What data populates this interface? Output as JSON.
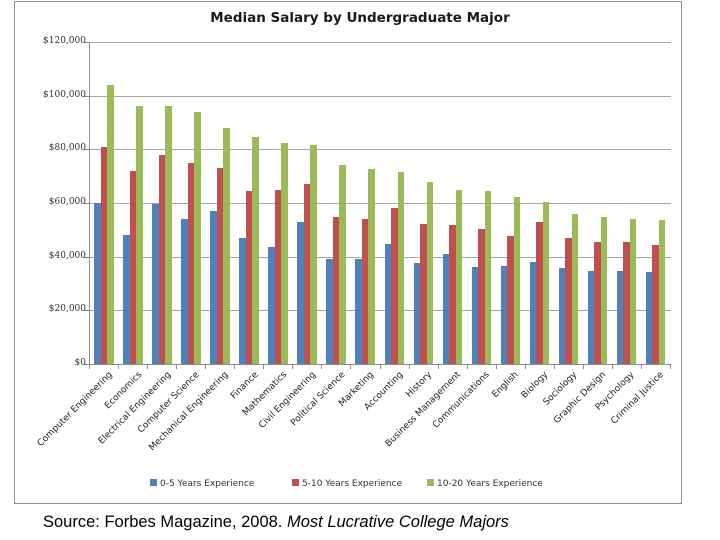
{
  "chart_data": {
    "type": "bar",
    "title": "Median Salary by Undergraduate Major",
    "xlabel": "",
    "ylabel": "",
    "ylim": [
      0,
      120000
    ],
    "yticks": [
      "$0",
      "$20,000",
      "$40,000",
      "$60,000",
      "$80,000",
      "$100,000",
      "$120,000"
    ],
    "ytick_values": [
      0,
      20000,
      40000,
      60000,
      80000,
      100000,
      120000
    ],
    "grid": true,
    "legend_position": "bottom",
    "categories": [
      "Computer Engineering",
      "Economics",
      "Electrical Engineering",
      "Computer Science",
      "Mechanical Engineering",
      "Finance",
      "Mathematics",
      "Civil Engineering",
      "Political Science",
      "Marketing",
      "Accounting",
      "History",
      "Business Management",
      "Communications",
      "English",
      "Biology",
      "Sociology",
      "Graphic Design",
      "Psychology",
      "Criminal Justice"
    ],
    "series": [
      {
        "name": "0-5 Years Experience",
        "color": "#4F81BD",
        "values": [
          60000,
          48000,
          59500,
          54000,
          57000,
          47000,
          43500,
          53000,
          39300,
          39300,
          44600,
          37500,
          41000,
          36300,
          36400,
          38000,
          35800,
          34700,
          34700,
          34100
        ]
      },
      {
        "name": "5-10 Years Experience",
        "color": "#C0504D",
        "values": [
          81000,
          72000,
          78000,
          75000,
          73000,
          64300,
          64900,
          66900,
          54800,
          54100,
          58000,
          52000,
          51800,
          50200,
          47700,
          52900,
          46800,
          45500,
          45500,
          44300
        ]
      },
      {
        "name": "10-20 Years Experience",
        "color": "#9BBB59",
        "values": [
          104000,
          96000,
          96000,
          94000,
          88000,
          84500,
          82300,
          81800,
          74300,
          72500,
          71700,
          67900,
          64900,
          64300,
          62200,
          60300,
          55900,
          54600,
          54000,
          53600
        ]
      }
    ]
  },
  "caption": {
    "source_prefix": "Source: Forbes Magazine, 2008. ",
    "source_title": "Most Lucrative College Majors"
  }
}
